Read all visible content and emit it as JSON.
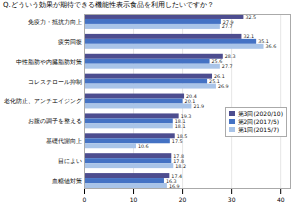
{
  "chart_data": {
    "type": "bar",
    "orientation": "horizontal",
    "title": "Q.どういう効果が期待できる機能性表示食品を利用したいですか？",
    "categories": [
      "免疫力・抵抗力向上",
      "疲労回復",
      "中性脂肪や内臓脂肪対策",
      "コレステロール抑制",
      "老化防止、アンチエイジング",
      "お腹の調子を整える",
      "基礎代謝向上",
      "目によい",
      "血糖値対策"
    ],
    "series": [
      {
        "name": "第3回(2020/10)",
        "color": "#4D4D8F",
        "values": [
          32.5,
          32.1,
          28.3,
          26.1,
          20.4,
          19.3,
          18.5,
          17.8,
          17.4
        ]
      },
      {
        "name": "第2回(2017/5)",
        "color": "#4472C4",
        "values": [
          27.9,
          35.1,
          25.6,
          25.1,
          20.1,
          18.1,
          17.5,
          17.8,
          16.3
        ]
      },
      {
        "name": "第1回(2015/7)",
        "color": "#A9C4E8",
        "values": [
          27.7,
          36.6,
          27.7,
          26.9,
          21.9,
          18.1,
          10.6,
          18.2,
          16.9
        ]
      }
    ],
    "xlim": [
      0,
      42
    ],
    "xticks": [
      0,
      10,
      20,
      30,
      40
    ],
    "grid": true,
    "legend": "right",
    "data_labels": true
  }
}
